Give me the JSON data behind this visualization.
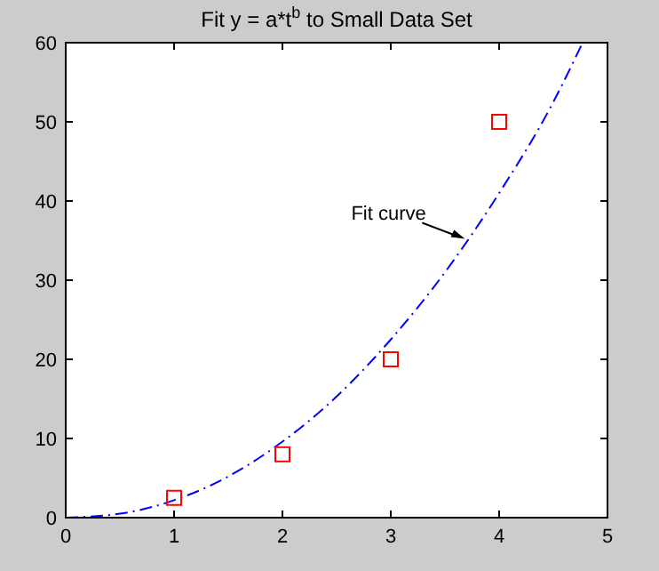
{
  "chart_data": {
    "type": "scatter",
    "title": "Fit y = a*t$^{b}$ to Small Data Set",
    "marker": "square",
    "xlim": [
      0,
      5
    ],
    "ylim": [
      0,
      60
    ],
    "xticks": [
      0,
      1,
      2,
      3,
      4,
      5
    ],
    "yticks": [
      0,
      10,
      20,
      30,
      40,
      50,
      60
    ],
    "grid": false,
    "series": [
      {
        "color": "#ff0000",
        "x": [
          1,
          2,
          3,
          4
        ],
        "values": [
          2.5,
          8,
          20,
          50
        ]
      },
      {
        "type": "line",
        "color": "#0000ff",
        "line_style": "dashed",
        "marker": "none",
        "x": [
          0,
          0.5,
          1,
          1.5,
          2,
          2.5,
          3,
          3.5,
          4,
          4.5,
          4.77
        ],
        "values": [
          0,
          0.5,
          2.2,
          5.2,
          9.6,
          15.3,
          22.5,
          31,
          41,
          52.5,
          60
        ]
      }
    ],
    "annotations": [
      {
        "text": "Fit curve",
        "x": 3.7,
        "y": 35
      }
    ]
  }
}
